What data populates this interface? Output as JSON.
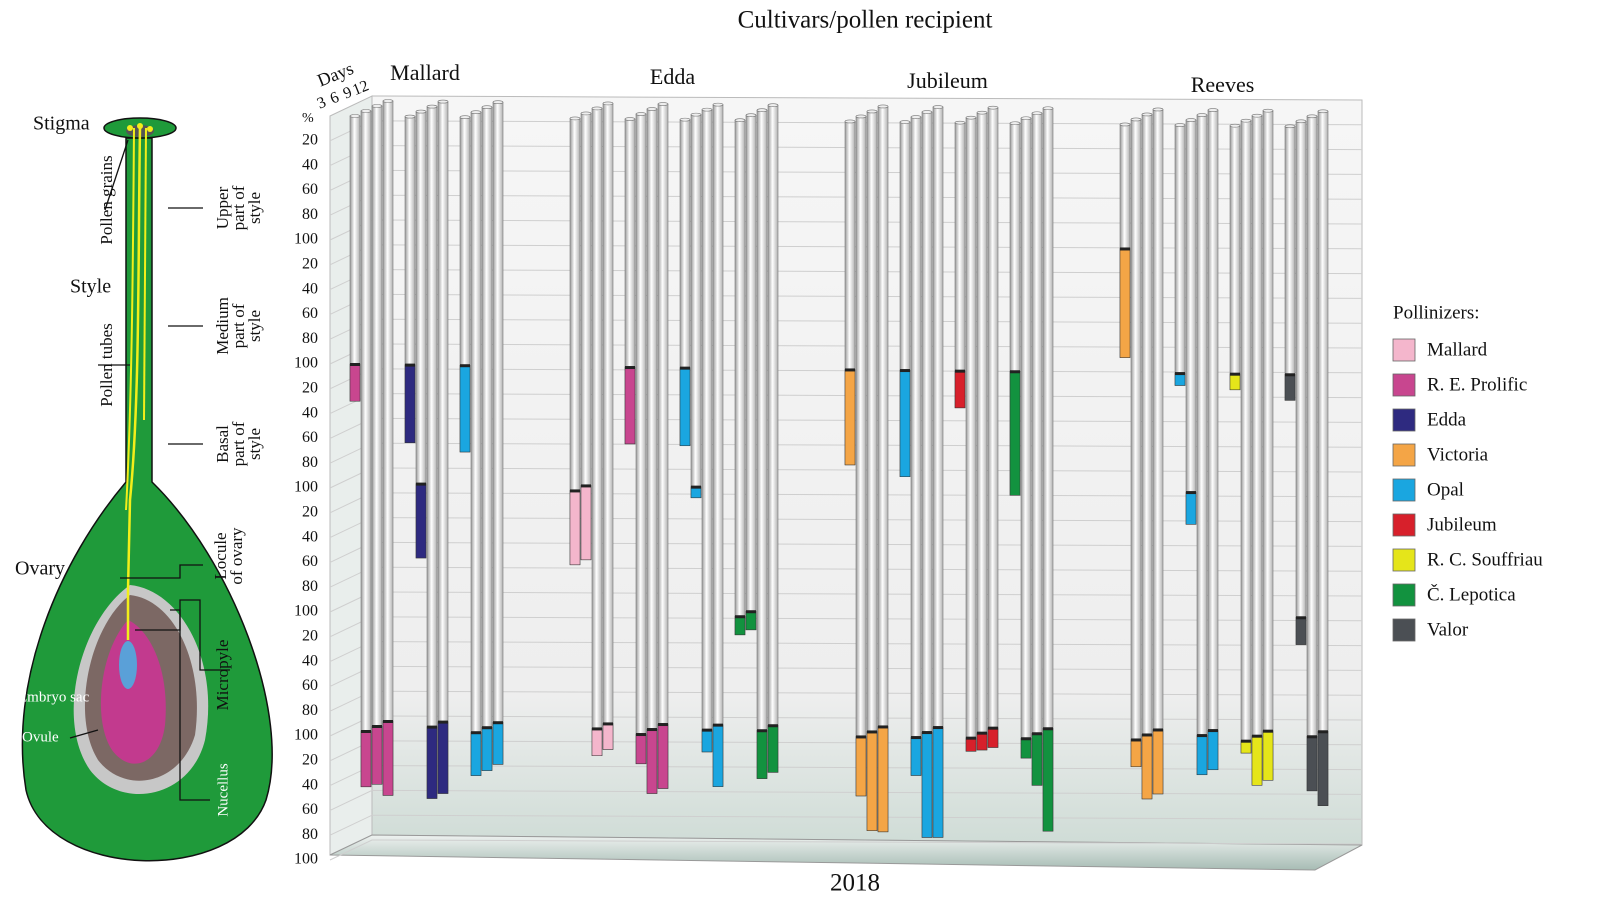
{
  "chart_data": {
    "type": "bar3d",
    "title": "Cultivars/pollen recipient",
    "xlabel": "2018",
    "ylabel": "%",
    "depth_label": "Days",
    "days": [
      3,
      6,
      9,
      12
    ],
    "categories": [
      "Mallard",
      "Edda",
      "Jubileum",
      "Reeves"
    ],
    "legend_title": "Pollinizers:",
    "ylim": [
      0,
      600
    ],
    "yticks": [
      20,
      40,
      60,
      80,
      100,
      {
        "value": 120,
        "label": "20"
      },
      {
        "value": 140,
        "label": "40"
      },
      {
        "value": 160,
        "label": "60"
      },
      {
        "value": 180,
        "label": "80"
      },
      {
        "value": 200,
        "label": "100"
      },
      {
        "value": 220,
        "label": "20"
      },
      {
        "value": 240,
        "label": "40"
      },
      {
        "value": 260,
        "label": "60"
      },
      {
        "value": 280,
        "label": "80"
      },
      {
        "value": 300,
        "label": "100"
      },
      {
        "value": 320,
        "label": "20"
      },
      {
        "value": 340,
        "label": "40"
      },
      {
        "value": 360,
        "label": "60"
      },
      {
        "value": 380,
        "label": "80"
      },
      {
        "value": 400,
        "label": "100"
      },
      {
        "value": 420,
        "label": "20"
      },
      {
        "value": 440,
        "label": "40"
      },
      {
        "value": 460,
        "label": "60"
      },
      {
        "value": 480,
        "label": "80"
      },
      {
        "value": 500,
        "label": "100"
      },
      {
        "value": 520,
        "label": "20"
      },
      {
        "value": 540,
        "label": "40"
      },
      {
        "value": 560,
        "label": "60"
      },
      {
        "value": 580,
        "label": "80"
      },
      {
        "value": 600,
        "label": "100"
      }
    ],
    "grid": true,
    "series": [
      {
        "name": "Mallard",
        "color": "#f4b6cc",
        "values": [
          null,
          [
            [
              null,
              null,
              null,
              60,
              null,
              null
            ],
            [
              null,
              null,
              null,
              60,
              null,
              null
            ],
            [
              null,
              null,
              null,
              null,
              null,
              22
            ],
            [
              null,
              null,
              null,
              null,
              null,
              21
            ]
          ],
          null,
          null
        ]
      },
      {
        "name": "R. E. Prolific",
        "color": "#c8468f",
        "values": [
          [
            [
              null,
              null,
              30,
              null,
              null,
              null
            ],
            [
              null,
              null,
              null,
              null,
              null,
              45
            ],
            [
              null,
              null,
              null,
              null,
              null,
              47
            ],
            [
              null,
              null,
              null,
              null,
              null,
              60
            ]
          ],
          [
            [
              null,
              null,
              62,
              null,
              null,
              null
            ],
            [
              null,
              null,
              null,
              null,
              null,
              24
            ],
            [
              null,
              null,
              null,
              null,
              null,
              52
            ],
            [
              null,
              null,
              null,
              null,
              null,
              52
            ]
          ],
          null,
          null
        ]
      },
      {
        "name": "Edda",
        "color": "#2e2a80",
        "values": [
          [
            [
              null,
              null,
              63,
              null,
              null,
              null
            ],
            [
              null,
              null,
              null,
              60,
              null,
              null
            ],
            [
              null,
              null,
              null,
              null,
              null,
              58
            ],
            [
              null,
              null,
              null,
              null,
              null,
              58
            ]
          ],
          null,
          null,
          null
        ]
      },
      {
        "name": "Victoria",
        "color": "#f4a546",
        "values": [
          null,
          null,
          [
            [
              null,
              null,
              77,
              null,
              null,
              null
            ],
            [
              null,
              null,
              null,
              null,
              null,
              48
            ],
            [
              null,
              null,
              null,
              null,
              null,
              80
            ],
            [
              null,
              null,
              null,
              null,
              null,
              85
            ]
          ],
          [
            [
              null,
              88,
              null,
              null,
              null,
              null
            ],
            [
              null,
              null,
              null,
              null,
              null,
              22
            ],
            [
              null,
              null,
              null,
              null,
              null,
              52
            ],
            [
              null,
              null,
              null,
              null,
              null,
              52
            ]
          ]
        ]
      },
      {
        "name": "Opal",
        "color": "#1aa6e0",
        "values": [
          [
            [
              null,
              null,
              70,
              null,
              null,
              null
            ],
            [
              null,
              null,
              null,
              null,
              null,
              35
            ],
            [
              null,
              null,
              null,
              null,
              null,
              35
            ],
            [
              null,
              null,
              null,
              null,
              null,
              34
            ]
          ],
          [
            [
              null,
              null,
              63,
              null,
              null,
              null
            ],
            [
              null,
              null,
              null,
              9,
              null,
              null
            ],
            [
              null,
              null,
              null,
              null,
              null,
              18
            ],
            [
              null,
              null,
              null,
              null,
              null,
              50
            ]
          ],
          [
            [
              null,
              null,
              86,
              null,
              null,
              null
            ],
            [
              null,
              null,
              null,
              null,
              null,
              31
            ],
            [
              null,
              null,
              null,
              null,
              null,
              85
            ],
            [
              null,
              null,
              null,
              null,
              null,
              89
            ]
          ],
          [
            [
              null,
              null,
              10,
              null,
              null,
              null
            ],
            [
              null,
              null,
              null,
              26,
              null,
              null
            ],
            [
              null,
              null,
              null,
              null,
              null,
              32
            ],
            [
              null,
              null,
              null,
              null,
              null,
              32
            ]
          ]
        ]
      },
      {
        "name": "Jubileum",
        "color": "#d7202b",
        "values": [
          null,
          null,
          [
            [
              null,
              null,
              30,
              null,
              null,
              null
            ],
            [
              null,
              null,
              null,
              null,
              null,
              11
            ],
            [
              null,
              null,
              null,
              null,
              null,
              14
            ],
            [
              null,
              null,
              null,
              null,
              null,
              16
            ]
          ],
          null
        ]
      },
      {
        "name": "R. C. Souffriau",
        "color": "#e5e51a",
        "values": [
          null,
          null,
          null,
          [
            [
              null,
              null,
              13,
              null,
              null,
              null
            ],
            [
              null,
              null,
              null,
              null,
              null,
              10
            ],
            [
              null,
              null,
              null,
              null,
              null,
              40
            ],
            [
              null,
              null,
              null,
              null,
              null,
              40
            ]
          ]
        ]
      },
      {
        "name": "Č. Lepotica",
        "color": "#12923f",
        "values": [
          null,
          [
            [
              null,
              null,
              null,
              null,
              15,
              null
            ],
            [
              null,
              null,
              null,
              null,
              15,
              null
            ],
            [
              null,
              null,
              null,
              null,
              null,
              39
            ],
            [
              null,
              null,
              null,
              null,
              null,
              38
            ]
          ],
          [
            [
              null,
              null,
              100,
              null,
              null,
              null
            ],
            [
              null,
              null,
              null,
              null,
              null,
              16
            ],
            [
              null,
              null,
              null,
              null,
              null,
              42
            ],
            [
              null,
              null,
              null,
              null,
              null,
              83
            ]
          ],
          null
        ]
      },
      {
        "name": "Valor",
        "color": "#4b4f54",
        "values": [
          null,
          null,
          null,
          [
            [
              null,
              null,
              21,
              null,
              null,
              null
            ],
            [
              null,
              null,
              null,
              null,
              22,
              null
            ],
            [
              null,
              null,
              null,
              null,
              null,
              44
            ],
            [
              null,
              null,
              null,
              null,
              null,
              60
            ]
          ]
        ]
      }
    ]
  },
  "diagram": {
    "stigma": "Stigma",
    "pollen_grains": "Pollen grains",
    "style": "Style",
    "pollen_tubes": "Pollen tubes",
    "upper": [
      "Upper",
      "part of",
      "style"
    ],
    "medium": [
      "Medium",
      "part of",
      "style"
    ],
    "basal": [
      "Basal",
      "part of",
      "style"
    ],
    "locule": [
      "Locule",
      "of ovary"
    ],
    "ovary": "Ovary",
    "micropyle": "Micropyle",
    "embryo_sac": "Embryo sac",
    "ovule": "Ovule",
    "nucellus": "Nucellus"
  }
}
